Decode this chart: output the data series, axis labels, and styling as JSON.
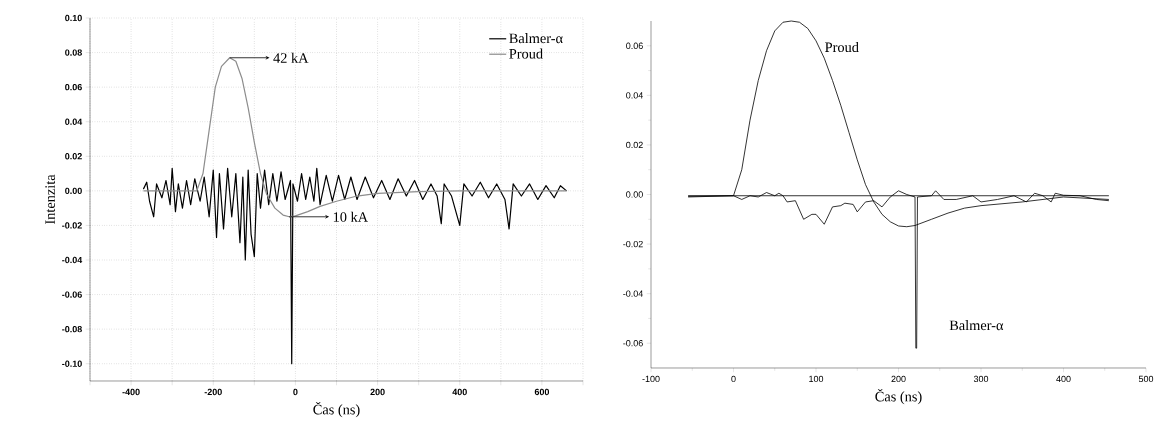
{
  "chart_data": [
    {
      "type": "line",
      "xlabel": "Čas (ns)",
      "ylabel": "Intenzita",
      "xlim": [
        -500,
        700
      ],
      "ylim": [
        -0.11,
        0.1
      ],
      "xticks": [
        {
          "value": -500,
          "label": null
        },
        -400,
        {
          "value": -300,
          "label": null
        },
        -200,
        {
          "value": -100,
          "label": null
        },
        0,
        {
          "value": 100,
          "label": null
        },
        200,
        {
          "value": 300,
          "label": null
        },
        400,
        {
          "value": 500,
          "label": null
        },
        600,
        {
          "value": 700,
          "label": null
        }
      ],
      "yticks": [
        {
          "value": -0.1,
          "label": "-0.10"
        },
        {
          "value": -0.08,
          "label": "-0.08"
        },
        {
          "value": -0.06,
          "label": "-0.06"
        },
        {
          "value": -0.04,
          "label": "-0.04"
        },
        {
          "value": -0.02,
          "label": "-0.02"
        },
        {
          "value": 0,
          "label": "0.00"
        },
        {
          "value": 0.02,
          "label": "0.02"
        },
        {
          "value": 0.04,
          "label": "0.04"
        },
        {
          "value": 0.06,
          "label": "0.06"
        },
        {
          "value": 0.08,
          "label": "0.08"
        },
        {
          "value": 0.1,
          "label": "0.10"
        }
      ],
      "grid": true,
      "legend": "top right",
      "annotations": [
        "42 kA",
        "10 kA"
      ],
      "series": [
        {
          "name": "Balmer-α",
          "color": "#000000",
          "x": [
            -370,
            -362,
            -355,
            -345,
            -338,
            -325,
            -315,
            -305,
            -300,
            -292,
            -285,
            -275,
            -265,
            -255,
            -245,
            -232,
            -222,
            -210,
            -200,
            -192,
            -185,
            -175,
            -165,
            -155,
            -145,
            -135,
            -128,
            -122,
            -115,
            -108,
            -100,
            -93,
            -85,
            -75,
            -65,
            -55,
            -45,
            -35,
            -25,
            -12,
            -9,
            -6,
            5,
            15,
            25,
            35,
            45,
            52,
            60,
            75,
            90,
            105,
            120,
            135,
            150,
            170,
            190,
            210,
            230,
            250,
            270,
            290,
            310,
            330,
            345,
            355,
            362,
            380,
            400,
            410,
            430,
            450,
            470,
            490,
            510,
            520,
            530,
            550,
            570,
            590,
            610,
            630,
            645,
            660
          ],
          "values": [
            0.001,
            0.005,
            -0.006,
            -0.015,
            0.004,
            -0.004,
            0.006,
            -0.008,
            0.013,
            -0.012,
            0.004,
            -0.01,
            0.006,
            -0.008,
            0.007,
            -0.006,
            0.008,
            -0.015,
            0.012,
            -0.027,
            0.01,
            -0.022,
            0.013,
            -0.015,
            0.01,
            -0.03,
            0.008,
            -0.04,
            0.012,
            -0.025,
            -0.038,
            0.01,
            -0.01,
            0.012,
            -0.008,
            0.01,
            -0.006,
            0.011,
            -0.005,
            0.006,
            -0.1,
            0.004,
            -0.006,
            0.01,
            -0.005,
            0.008,
            -0.006,
            0.013,
            -0.008,
            0.009,
            -0.006,
            0.009,
            -0.005,
            0.008,
            -0.005,
            0.008,
            -0.004,
            0.006,
            -0.005,
            0.007,
            -0.003,
            0.006,
            -0.005,
            0.004,
            -0.003,
            -0.019,
            0.004,
            -0.003,
            -0.02,
            0.004,
            -0.003,
            0.005,
            -0.004,
            0.004,
            -0.005,
            -0.022,
            0.004,
            -0.003,
            0.004,
            -0.005,
            0.003,
            -0.004,
            0.003,
            0
          ]
        },
        {
          "name": "Proud",
          "color": "#8c8c8c",
          "x": [
            -370,
            -240,
            -225,
            -210,
            -195,
            -180,
            -160,
            -145,
            -130,
            -115,
            -100,
            -85,
            -70,
            -50,
            -30,
            -15,
            0,
            30,
            60,
            100,
            150,
            200,
            300,
            400,
            660
          ],
          "values": [
            0,
            0,
            0.01,
            0.035,
            0.06,
            0.072,
            0.077,
            0.075,
            0.065,
            0.048,
            0.028,
            0.01,
            -0.002,
            -0.01,
            -0.014,
            -0.015,
            -0.0145,
            -0.012,
            -0.009,
            -0.006,
            -0.003,
            -0.0015,
            -0.0005,
            0,
            0
          ]
        }
      ]
    },
    {
      "type": "line",
      "xlabel": "Čas (ns)",
      "xlim": [
        -100,
        500
      ],
      "ylim": [
        -0.07,
        0.07
      ],
      "xticks": [
        -100,
        0,
        100,
        200,
        300,
        400,
        500
      ],
      "yticks": [
        {
          "value": -0.06,
          "label": "-0.06"
        },
        {
          "value": -0.04,
          "label": "-0.04"
        },
        {
          "value": -0.02,
          "label": "-0.02"
        },
        {
          "value": 0,
          "label": "0.00"
        },
        {
          "value": 0.02,
          "label": "0.02"
        },
        {
          "value": 0.04,
          "label": "0.04"
        },
        {
          "value": 0.06,
          "label": "0.06"
        }
      ],
      "series": [
        {
          "name": "Proud",
          "color": "#000000",
          "x": [
            -55,
            0,
            10,
            20,
            30,
            40,
            50,
            60,
            70,
            80,
            90,
            100,
            110,
            120,
            130,
            140,
            150,
            160,
            170,
            180,
            190,
            200,
            210,
            220,
            240,
            260,
            280,
            300,
            350,
            400,
            455
          ],
          "values": [
            -0.0007,
            -0.0005,
            0.01,
            0.03,
            0.046,
            0.058,
            0.066,
            0.0695,
            0.07,
            0.0695,
            0.067,
            0.062,
            0.055,
            0.046,
            0.036,
            0.025,
            0.014,
            0.004,
            -0.003,
            -0.008,
            -0.011,
            -0.0127,
            -0.013,
            -0.0125,
            -0.01,
            -0.0075,
            -0.0055,
            -0.0045,
            -0.003,
            -0.001,
            -0.002
          ]
        },
        {
          "name": "Balmer-α",
          "color": "#000000",
          "x": [
            -55,
            0,
            10,
            20,
            30,
            40,
            50,
            55,
            60,
            65,
            75,
            85,
            95,
            100,
            110,
            120,
            130,
            135,
            145,
            150,
            160,
            170,
            180,
            190,
            200,
            210,
            220,
            221,
            222,
            223,
            240,
            245,
            255,
            270,
            290,
            300,
            320,
            340,
            355,
            365,
            375,
            385,
            390,
            400,
            420,
            440,
            455
          ],
          "values": [
            -0.001,
            -0.0005,
            -0.002,
            -0.0005,
            -0.001,
            0.0008,
            -0.0005,
            0.0005,
            -0.0005,
            -0.003,
            -0.0025,
            -0.01,
            -0.008,
            -0.008,
            -0.012,
            -0.005,
            -0.0045,
            -0.0035,
            -0.004,
            -0.007,
            -0.003,
            -0.0025,
            -0.005,
            -0.001,
            0.0015,
            0,
            -0.001,
            -0.062,
            -0.062,
            -0.001,
            -0.0005,
            0.0015,
            -0.002,
            -0.002,
            -0.0005,
            -0.003,
            -0.002,
            -0.0005,
            -0.003,
            0.0005,
            -0.0005,
            -0.003,
            0.0005,
            -0.0003,
            -0.0005,
            -0.002,
            -0.0025
          ]
        },
        {
          "color": "#000000",
          "x": [
            -55,
            455
          ],
          "values": [
            -0.0005,
            -0.0005
          ]
        }
      ]
    }
  ]
}
